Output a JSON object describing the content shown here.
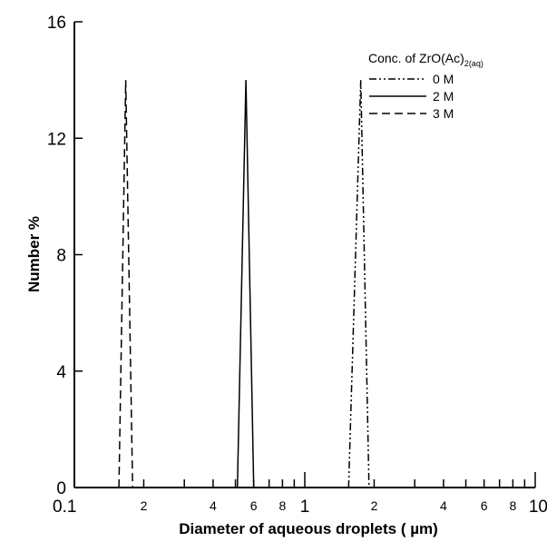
{
  "chart_data": {
    "type": "line",
    "xlabel": "Diameter of aqueous droplets ( µm)",
    "ylabel": "Number %",
    "x_scale": "log",
    "xlim": [
      0.1,
      10
    ],
    "ylim": [
      0,
      16
    ],
    "y_ticks": [
      0,
      4,
      8,
      12,
      16
    ],
    "x_major_ticks": [
      0.1,
      1,
      10
    ],
    "x_minor_ticks": [
      0.2,
      0.4,
      0.6,
      0.8,
      2,
      4,
      6,
      8
    ],
    "x_tick_labels": {
      "major": [
        "0.1",
        "1",
        "10"
      ],
      "minor": [
        "2",
        "4",
        "6",
        "8",
        "2",
        "4",
        "6",
        "8"
      ]
    },
    "grid": false,
    "legend": {
      "title_main": "Conc. of ZrO(Ac)",
      "title_sub1": "2",
      "title_sub2": "(aq)",
      "placement": "top-right"
    },
    "series": [
      {
        "name": "0 M",
        "dash": "dashdotdot",
        "x": [
          1.55,
          1.75,
          1.9
        ],
        "y": [
          0,
          14,
          0
        ]
      },
      {
        "name": "2 M",
        "dash": "solid",
        "x": [
          0.51,
          0.555,
          0.6
        ],
        "y": [
          0,
          14,
          0
        ]
      },
      {
        "name": "3 M",
        "dash": "dash",
        "x": [
          0.156,
          0.167,
          0.179
        ],
        "y": [
          0,
          14,
          0
        ]
      }
    ]
  }
}
